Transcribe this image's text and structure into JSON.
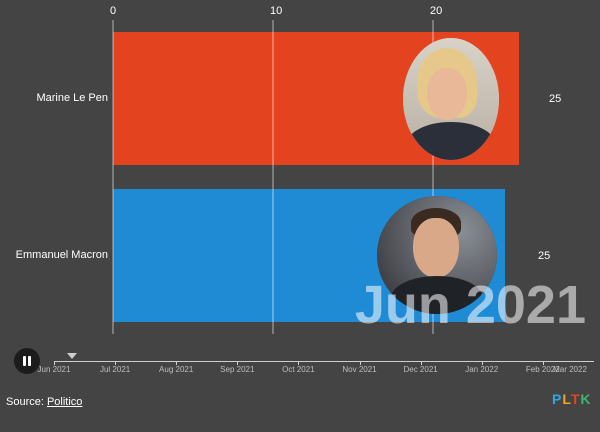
{
  "chart_data": {
    "type": "bar",
    "orientation": "horizontal",
    "categories": [
      "Marine Le Pen",
      "Emmanuel Macron"
    ],
    "values": [
      25,
      25
    ],
    "colors": [
      "#e4431f",
      "#1f8bd4"
    ],
    "xlim": [
      0,
      30
    ],
    "x_ticks": [
      0,
      10,
      20
    ],
    "grid": true,
    "period": "Jun 2021"
  },
  "timeline": {
    "labels": [
      "Jun 2021",
      "Jul 2021",
      "Aug 2021",
      "Sep 2021",
      "Oct 2021",
      "Nov 2021",
      "Dec 2021",
      "Jan 2022",
      "Feb 2022",
      "Mar 2022"
    ]
  },
  "controls": {
    "play_icon": "pause-icon"
  },
  "footer": {
    "source_prefix": "Source: ",
    "source_link": "Politico",
    "logo": "PLTK",
    "logo_colors": [
      "#2fa8e0",
      "#f2a422",
      "#e4431f",
      "#3fb36b"
    ]
  }
}
